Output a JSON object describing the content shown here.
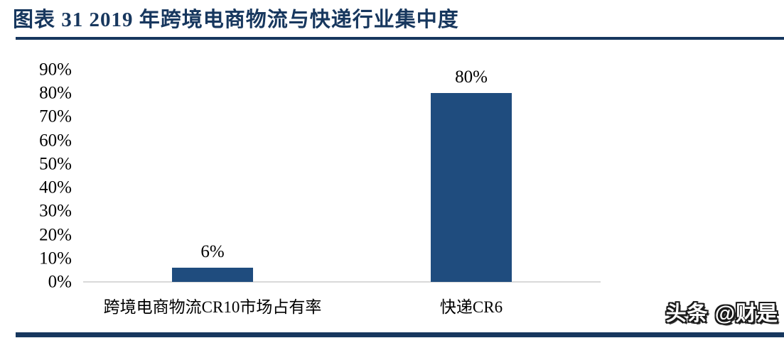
{
  "header": {
    "title": "图表 31  2019 年跨境电商物流与快递行业集中度"
  },
  "colors": {
    "navy": "#17375E",
    "bar": "#1F4C7E",
    "axis": "#D9D9D9",
    "label_text": "#000000"
  },
  "chart_data": {
    "type": "bar",
    "title": "2019 年跨境电商物流与快递行业集中度",
    "categories": [
      "跨境电商物流CR10市场占有率",
      "快递CR6"
    ],
    "values": [
      6,
      80
    ],
    "value_labels": [
      "6%",
      "80%"
    ],
    "yticks": [
      "0%",
      "10%",
      "20%",
      "30%",
      "40%",
      "50%",
      "60%",
      "70%",
      "80%",
      "90%"
    ],
    "ylim": [
      0,
      90
    ],
    "ytick_step": 10,
    "grid": false,
    "legend_position": "none",
    "xlabel": "",
    "ylabel": ""
  },
  "footer": {
    "watermark": "头条 @财是"
  }
}
